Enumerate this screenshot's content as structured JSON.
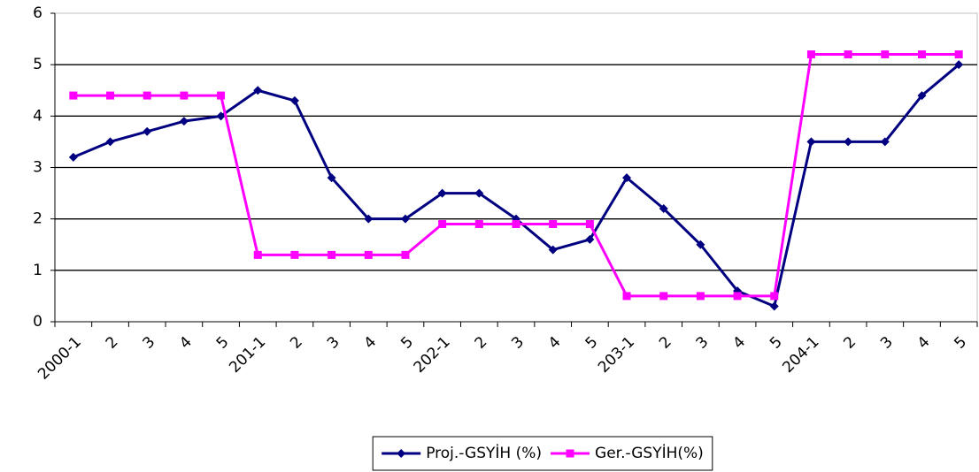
{
  "chart_data": {
    "type": "line",
    "categories": [
      "2000-1",
      "2",
      "3",
      "4",
      "5",
      "201-1",
      "2",
      "3",
      "4",
      "5",
      "202-1",
      "2",
      "3",
      "4",
      "5",
      "203-1",
      "2",
      "3",
      "4",
      "5",
      "204-1",
      "2",
      "3",
      "4",
      "5"
    ],
    "series": [
      {
        "name": "Proj.-GSYİH (%)",
        "color": "#000080",
        "marker": "diamond",
        "values": [
          3.2,
          3.5,
          3.7,
          3.9,
          4.0,
          4.5,
          4.3,
          2.8,
          2.0,
          2.0,
          2.5,
          2.5,
          2.0,
          1.4,
          1.6,
          2.8,
          2.2,
          1.5,
          0.6,
          0.3,
          3.5,
          3.5,
          3.5,
          4.4,
          5.0
        ]
      },
      {
        "name": "Ger.-GSYİH(%)",
        "color": "#ff00ff",
        "marker": "square",
        "values": [
          4.4,
          4.4,
          4.4,
          4.4,
          4.4,
          1.3,
          1.3,
          1.3,
          1.3,
          1.3,
          1.9,
          1.9,
          1.9,
          1.9,
          1.9,
          0.5,
          0.5,
          0.5,
          0.5,
          0.5,
          5.2,
          5.2,
          5.2,
          5.2,
          5.2
        ]
      }
    ],
    "ylim": [
      0,
      6
    ],
    "yticks": [
      0,
      1,
      2,
      3,
      4,
      5,
      6
    ],
    "grid": true,
    "legend": "bottom"
  }
}
